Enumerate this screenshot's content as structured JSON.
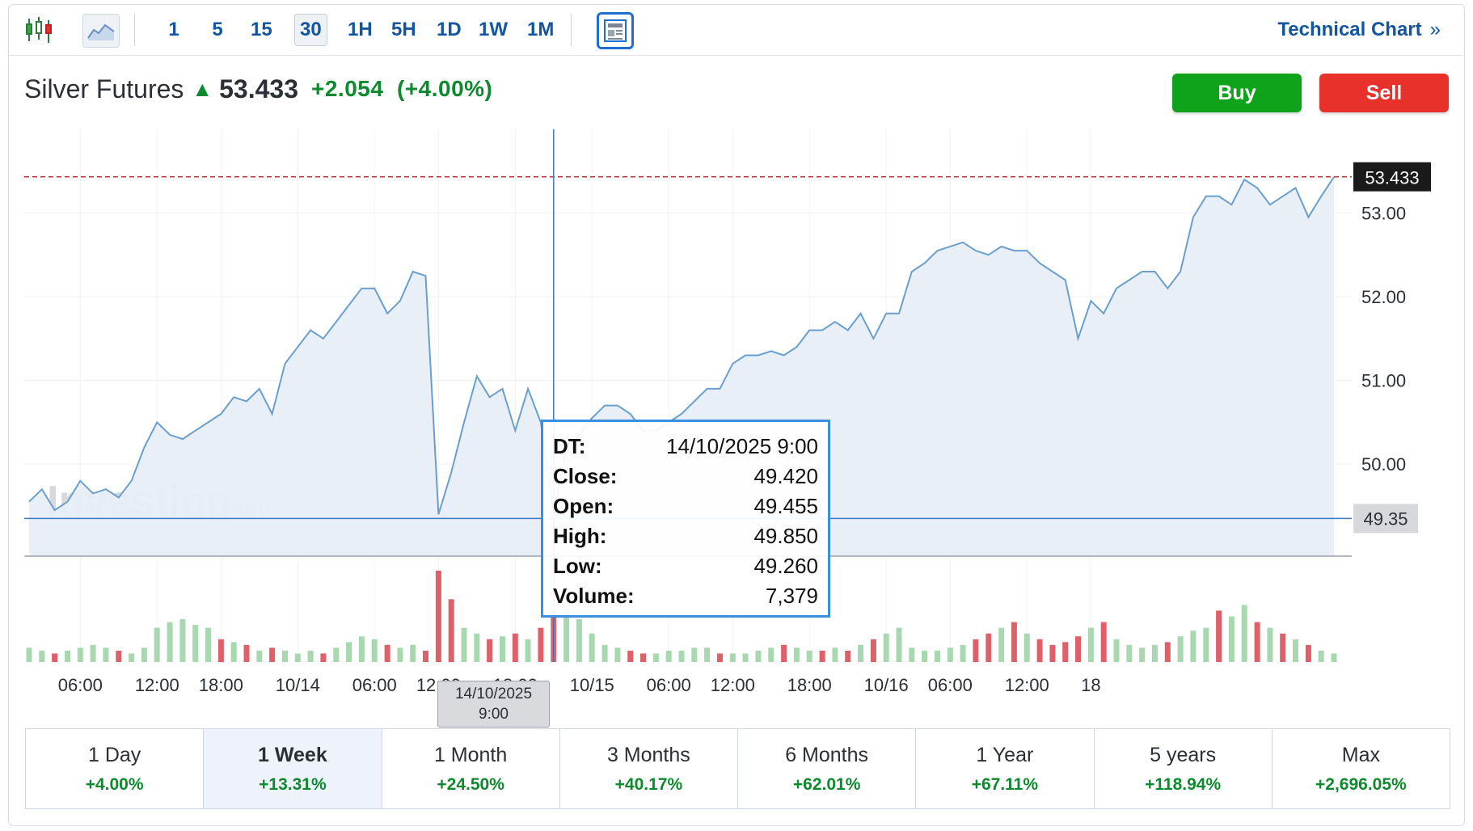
{
  "toolbar": {
    "timeframes": [
      "1",
      "5",
      "15",
      "30",
      "1H",
      "5H",
      "1D",
      "1W",
      "1M"
    ],
    "active_timeframe": "30",
    "technical_chart_label": "Technical Chart",
    "technical_chart_arrow": "»"
  },
  "instrument": {
    "name": "Silver Futures",
    "price": "53.433",
    "change": "+2.054",
    "change_pct": "(+4.00%)"
  },
  "actions": {
    "buy_label": "Buy",
    "sell_label": "Sell"
  },
  "colors": {
    "accent": "#1256a0",
    "up": "#0d8a2d",
    "buy": "#0fa21b",
    "sell": "#e8312a",
    "line": "#6a9fcd",
    "area": "#e8eef7",
    "volume_up": "#a8d8b0",
    "volume_down": "#e0606a"
  },
  "watermark": {
    "main": "Investing",
    "suffix": ".com"
  },
  "tooltip": {
    "dt_label": "DT:",
    "dt_value": "14/10/2025 9:00",
    "close_label": "Close:",
    "close_value": "49.420",
    "open_label": "Open:",
    "open_value": "49.455",
    "high_label": "High:",
    "high_value": "49.850",
    "low_label": "Low:",
    "low_value": "49.260",
    "volume_label": "Volume:",
    "volume_value": "7,379"
  },
  "crosshair": {
    "date": "14/10/2025",
    "time": "9:00",
    "price_label": "49.35",
    "price": 49.35
  },
  "periods": [
    {
      "label": "1 Day",
      "change": "+4.00%"
    },
    {
      "label": "1 Week",
      "change": "+13.31%"
    },
    {
      "label": "1 Month",
      "change": "+24.50%"
    },
    {
      "label": "3 Months",
      "change": "+40.17%"
    },
    {
      "label": "6 Months",
      "change": "+62.01%"
    },
    {
      "label": "1 Year",
      "change": "+67.11%"
    },
    {
      "label": "5 years",
      "change": "+118.94%"
    },
    {
      "label": "Max",
      "change": "+2,696.05%"
    }
  ],
  "active_period": "1 Week",
  "chart_data": {
    "type": "area",
    "title": "",
    "xlabel": "",
    "ylabel": "",
    "y_ticks": [
      50.0,
      51.0,
      52.0,
      53.0
    ],
    "y_tick_labels": [
      "50.00",
      "51.00",
      "52.00",
      "53.00"
    ],
    "ylim": [
      48.9,
      54.0
    ],
    "last_price": 53.433,
    "last_price_label": "53.433",
    "x_tick_labels": [
      "06:00",
      "12:00",
      "18:00",
      "10/14",
      "06:00",
      "12:00",
      "18:00",
      "10/15",
      "06:00",
      "12:00",
      "18:00",
      "10/16",
      "06:00",
      "12:00",
      "18"
    ],
    "x_tick_index": [
      4,
      10,
      15,
      21,
      27,
      32,
      38,
      44,
      50,
      55,
      61,
      67,
      72,
      78,
      83
    ],
    "close": [
      49.55,
      49.7,
      49.45,
      49.55,
      49.8,
      49.65,
      49.7,
      49.6,
      49.8,
      50.2,
      50.5,
      50.35,
      50.3,
      50.4,
      50.5,
      50.6,
      50.8,
      50.75,
      50.9,
      50.6,
      51.2,
      51.4,
      51.6,
      51.5,
      51.7,
      51.9,
      52.1,
      52.1,
      51.8,
      51.95,
      52.3,
      52.25,
      49.4,
      49.9,
      50.5,
      51.05,
      50.8,
      50.9,
      50.4,
      50.9,
      50.5,
      49.4,
      50.2,
      50.35,
      50.55,
      50.7,
      50.7,
      50.6,
      50.4,
      50.4,
      50.5,
      50.6,
      50.75,
      50.9,
      50.9,
      51.2,
      51.3,
      51.3,
      51.35,
      51.3,
      51.4,
      51.6,
      51.6,
      51.7,
      51.6,
      51.8,
      51.5,
      51.8,
      51.8,
      52.3,
      52.4,
      52.55,
      52.6,
      52.65,
      52.55,
      52.5,
      52.6,
      52.55,
      52.55,
      52.4,
      52.3,
      52.2,
      51.5,
      51.95,
      51.8,
      52.1,
      52.2,
      52.3,
      52.3,
      52.1,
      52.3,
      52.95,
      53.2,
      53.2,
      53.1,
      53.4,
      53.3,
      53.1,
      53.2,
      53.3,
      52.95,
      53.2,
      53.43
    ],
    "volume": [
      5,
      4,
      3,
      4,
      5,
      6,
      5,
      4,
      3,
      5,
      12,
      14,
      15,
      13,
      12,
      8,
      7,
      6,
      4,
      5,
      4,
      3,
      4,
      3,
      5,
      7,
      9,
      8,
      6,
      5,
      6,
      4,
      32,
      22,
      12,
      10,
      8,
      9,
      10,
      8,
      12,
      18,
      20,
      15,
      10,
      6,
      5,
      4,
      3,
      3,
      4,
      4,
      5,
      5,
      3,
      3,
      3,
      4,
      5,
      6,
      5,
      4,
      4,
      5,
      4,
      6,
      8,
      10,
      12,
      5,
      4,
      4,
      5,
      6,
      8,
      10,
      12,
      14,
      10,
      8,
      6,
      7,
      9,
      12,
      14,
      8,
      6,
      5,
      6,
      7,
      9,
      11,
      12,
      18,
      16,
      20,
      14,
      12,
      10,
      8,
      6,
      4,
      3
    ],
    "volume_up": [
      true,
      true,
      false,
      true,
      true,
      true,
      true,
      false,
      true,
      true,
      true,
      true,
      true,
      true,
      true,
      false,
      true,
      false,
      true,
      false,
      true,
      true,
      true,
      false,
      true,
      true,
      true,
      true,
      false,
      true,
      true,
      false,
      false,
      false,
      true,
      true,
      false,
      true,
      false,
      true,
      false,
      false,
      true,
      true,
      true,
      true,
      true,
      false,
      false,
      true,
      true,
      true,
      true,
      true,
      false,
      true,
      true,
      true,
      true,
      false,
      true,
      true,
      false,
      true,
      false,
      true,
      false,
      true,
      true,
      true,
      true,
      true,
      true,
      true,
      false,
      false,
      true,
      false,
      true,
      false,
      false,
      false,
      false,
      true,
      false,
      true,
      true,
      true,
      true,
      false,
      true,
      true,
      true,
      false,
      true,
      true,
      false,
      true,
      false,
      true,
      false,
      true,
      true
    ]
  }
}
